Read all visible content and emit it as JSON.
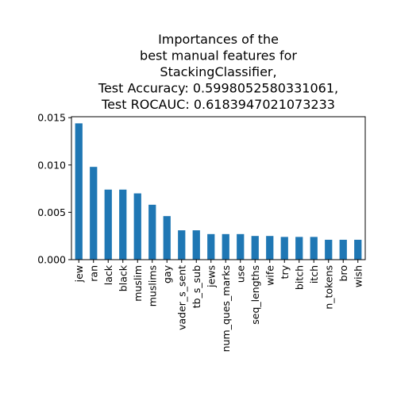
{
  "chart_data": {
    "type": "bar",
    "title_lines": [
      "Importances of the",
      "best manual features for",
      "StackingClassifier,",
      "Test Accuracy: 0.5998052580331061,",
      "Test ROCAUC: 0.6183947021073233"
    ],
    "xlabel": "",
    "ylabel": "",
    "categories": [
      "jew",
      "ran",
      "lack",
      "black",
      "muslim",
      "muslims",
      "gay",
      "vader_s_sent",
      "tb_s_sub",
      "jews",
      "num_ques_marks",
      "use",
      "seq_lengths",
      "wife",
      "try",
      "bitch",
      "itch",
      "n_tokens",
      "bro",
      "wish"
    ],
    "values": [
      0.0144,
      0.0098,
      0.0074,
      0.0074,
      0.007,
      0.0058,
      0.0046,
      0.0031,
      0.0031,
      0.0027,
      0.0027,
      0.0027,
      0.0025,
      0.0025,
      0.0024,
      0.0024,
      0.0024,
      0.0021,
      0.0021,
      0.0021
    ],
    "ylim": [
      0,
      0.0151
    ],
    "yticks": [
      "0.000",
      "0.005",
      "0.010",
      "0.015"
    ],
    "bar_color": "#1f77b4",
    "grid": false,
    "legend": "none"
  }
}
